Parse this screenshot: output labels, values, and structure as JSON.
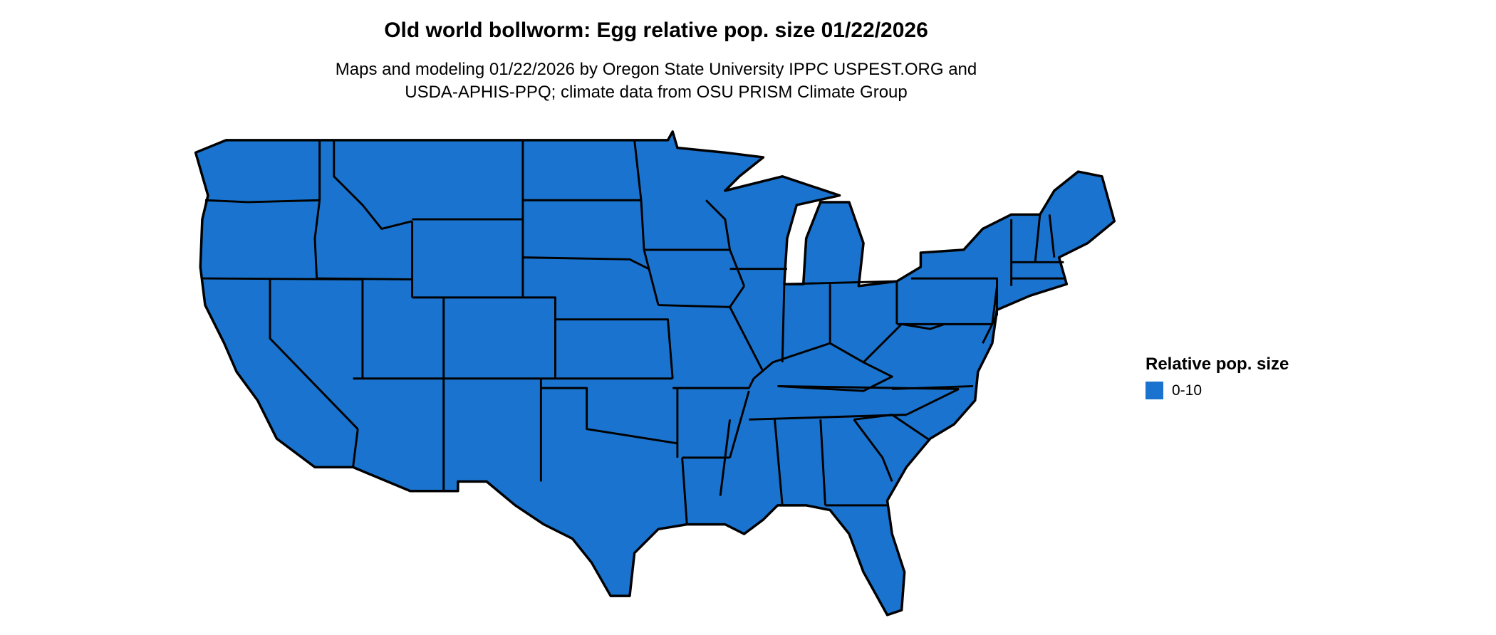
{
  "title": "Old world bollworm: Egg relative pop. size 01/22/2026",
  "subtitle_line1": "Maps and modeling 01/22/2026 by Oregon State University IPPC USPEST.ORG and",
  "subtitle_line2": "USDA-APHIS-PPQ; climate data from OSU PRISM Climate Group",
  "map": {
    "region": "Contiguous United States",
    "fill_color": "#1a74cf",
    "border_color": "#000000"
  },
  "legend": {
    "title": "Relative pop. size",
    "items": [
      {
        "label": "0-10",
        "color": "#1a74cf"
      }
    ]
  }
}
